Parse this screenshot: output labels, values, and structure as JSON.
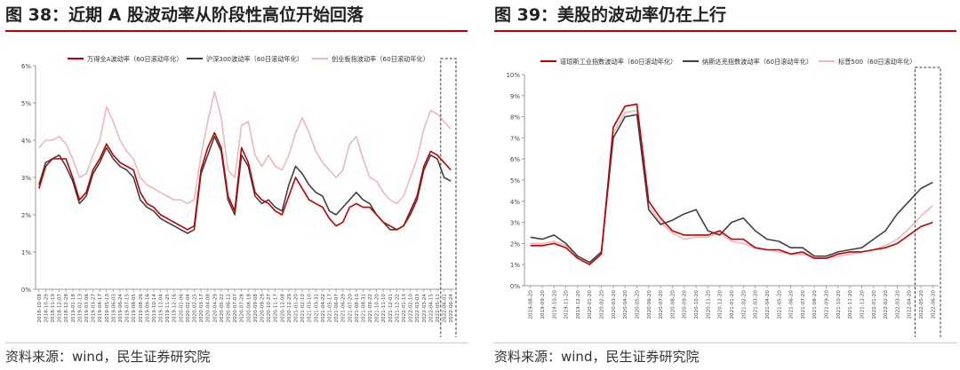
{
  "source_label": "资料来源：wind，民生证券研究院",
  "chart_data": [
    {
      "id": "fig38",
      "type": "line",
      "title": "图 38：近期 A 股波动率从阶段性高位开始回落",
      "xlabel": "",
      "ylabel": "",
      "ylim": [
        0,
        6
      ],
      "y_ticks": [
        "0%",
        "1%",
        "2%",
        "3%",
        "4%",
        "5%",
        "6%"
      ],
      "x_ticks": [
        "2018-10-08",
        "2018-10-29",
        "2018-11-19",
        "2018-12-07",
        "2018-12-28",
        "2019-01-18",
        "2019-02-13",
        "2019-03-06",
        "2019-03-27",
        "2019-04-17",
        "2019-05-13",
        "2019-06-03",
        "2019-06-24",
        "2019-07-15",
        "2019-08-05",
        "2019-08-26",
        "2019-09-16",
        "2019-10-14",
        "2019-11-04",
        "2019-11-25",
        "2019-12-16",
        "2020-01-06",
        "2020-02-04",
        "2020-02-25",
        "2020-03-17",
        "2020-04-08",
        "2020-04-29",
        "2020-05-22",
        "2020-06-12",
        "2020-07-07",
        "2020-07-28",
        "2020-08-18",
        "2020-09-08",
        "2020-09-29",
        "2020-10-27",
        "2020-11-17",
        "2020-12-08",
        "2020-12-29",
        "2021-01-20",
        "2021-02-10",
        "2021-03-10",
        "2021-03-31",
        "2021-04-22",
        "2021-05-17",
        "2021-06-07",
        "2021-06-29",
        "2021-07-20",
        "2021-08-10",
        "2021-08-31",
        "2021-09-22",
        "2021-10-20",
        "2021-11-10",
        "2021-12-01",
        "2021-12-22",
        "2022-01-13",
        "2022-02-10",
        "2022-03-03",
        "2022-03-24",
        "2022-04-15",
        "2022-05-11",
        "2022-06-01",
        "2022-06-24"
      ],
      "legend_position": "top",
      "grid": false,
      "highlight_last": true,
      "series": [
        {
          "name": "万得全A波动率（60日滚动年化）",
          "color": "#c00000",
          "values": [
            2.7,
            3.3,
            3.5,
            3.5,
            3.5,
            3.0,
            2.4,
            2.6,
            3.2,
            3.5,
            3.9,
            3.6,
            3.4,
            3.3,
            3.2,
            2.6,
            2.3,
            2.2,
            2.0,
            1.9,
            1.8,
            1.7,
            1.6,
            1.7,
            3.2,
            3.8,
            4.2,
            3.8,
            2.5,
            2.1,
            3.8,
            3.4,
            2.6,
            2.4,
            2.3,
            2.1,
            2.0,
            2.5,
            3.0,
            2.7,
            2.4,
            2.3,
            2.2,
            1.9,
            1.7,
            1.8,
            2.2,
            2.3,
            2.2,
            2.2,
            2.0,
            1.8,
            1.7,
            1.6,
            1.7,
            2.1,
            2.5,
            3.3,
            3.7,
            3.6,
            3.4,
            3.2
          ]
        },
        {
          "name": "沪深300波动率（60日滚动年化）",
          "color": "#404040",
          "values": [
            2.8,
            3.4,
            3.5,
            3.6,
            3.3,
            2.9,
            2.3,
            2.5,
            3.1,
            3.4,
            3.8,
            3.5,
            3.3,
            3.2,
            3.0,
            2.4,
            2.2,
            2.1,
            1.9,
            1.8,
            1.7,
            1.6,
            1.5,
            1.6,
            3.1,
            3.6,
            4.1,
            3.7,
            2.4,
            2.0,
            3.6,
            3.3,
            2.5,
            2.3,
            2.4,
            2.2,
            2.1,
            2.8,
            3.3,
            3.1,
            2.8,
            2.6,
            2.5,
            2.1,
            2.0,
            2.2,
            2.4,
            2.6,
            2.4,
            2.3,
            2.0,
            1.8,
            1.6,
            1.6,
            1.7,
            2.0,
            2.4,
            3.2,
            3.6,
            3.5,
            3.0,
            2.9
          ]
        },
        {
          "name": "创业板指波动率（60日滚动年化）",
          "color": "#f0b8b8",
          "values": [
            3.8,
            4.0,
            4.0,
            4.1,
            3.9,
            3.5,
            3.0,
            3.1,
            3.6,
            4.0,
            4.9,
            4.5,
            4.0,
            3.7,
            3.5,
            3.0,
            2.8,
            2.7,
            2.6,
            2.5,
            2.4,
            2.4,
            2.3,
            2.4,
            3.6,
            4.5,
            5.3,
            4.6,
            3.2,
            3.0,
            4.4,
            4.5,
            3.6,
            3.3,
            3.6,
            3.3,
            3.2,
            3.6,
            4.2,
            4.6,
            4.2,
            3.7,
            3.4,
            3.2,
            3.0,
            3.2,
            3.9,
            4.1,
            3.5,
            3.0,
            2.9,
            2.6,
            2.4,
            2.3,
            2.5,
            3.0,
            3.5,
            4.3,
            4.8,
            4.7,
            4.5,
            4.3
          ]
        }
      ]
    },
    {
      "id": "fig39",
      "type": "line",
      "title": "图 39：美股的波动率仍在上行",
      "xlabel": "",
      "ylabel": "",
      "ylim": [
        0,
        10
      ],
      "y_ticks": [
        "0%",
        "1%",
        "2%",
        "3%",
        "4%",
        "5%",
        "6%",
        "7%",
        "8%",
        "9%",
        "10%"
      ],
      "x_ticks": [
        "2019-08-20",
        "2019-09-20",
        "2019-10-20",
        "2019-11-20",
        "2019-12-20",
        "2020-01-20",
        "2020-02-20",
        "2020-03-20",
        "2020-04-20",
        "2020-05-20",
        "2020-06-20",
        "2020-07-20",
        "2020-08-20",
        "2020-09-20",
        "2020-10-20",
        "2020-11-20",
        "2020-12-20",
        "2021-01-20",
        "2021-02-20",
        "2021-03-20",
        "2021-04-20",
        "2021-05-20",
        "2021-06-20",
        "2021-07-20",
        "2021-08-20",
        "2021-09-20",
        "2021-10-20",
        "2021-11-20",
        "2021-12-20",
        "2022-01-20",
        "2022-02-20",
        "2022-03-20",
        "2022-04-20",
        "2022-05-20",
        "2022-06-20"
      ],
      "legend_position": "top",
      "grid": false,
      "highlight_last": true,
      "series": [
        {
          "name": "道琼斯工业指数波动率（60日滚动年化）",
          "color": "#c00000",
          "values": [
            1.9,
            1.9,
            2.0,
            1.8,
            1.3,
            1.0,
            1.5,
            7.5,
            8.5,
            8.6,
            4.0,
            3.2,
            2.6,
            2.4,
            2.4,
            2.4,
            2.6,
            2.2,
            2.2,
            1.8,
            1.7,
            1.7,
            1.5,
            1.6,
            1.3,
            1.3,
            1.5,
            1.6,
            1.6,
            1.7,
            1.8,
            2.0,
            2.4,
            2.8,
            3.0
          ]
        },
        {
          "name": "纳斯达克指数波动率（60日滚动年化）",
          "color": "#404040",
          "values": [
            2.3,
            2.2,
            2.4,
            2.0,
            1.4,
            1.1,
            1.6,
            7.0,
            8.0,
            8.1,
            3.6,
            2.9,
            3.1,
            3.4,
            3.6,
            2.6,
            2.4,
            3.0,
            3.2,
            2.6,
            2.2,
            2.1,
            1.8,
            1.8,
            1.4,
            1.4,
            1.6,
            1.7,
            1.8,
            2.2,
            2.6,
            3.4,
            4.0,
            4.6,
            4.9
          ]
        },
        {
          "name": "标普500（60日滚动年化）",
          "color": "#f0b8b8",
          "values": [
            2.0,
            2.0,
            2.1,
            1.9,
            1.4,
            1.1,
            1.5,
            7.2,
            8.2,
            8.3,
            3.8,
            3.0,
            2.5,
            2.2,
            2.3,
            2.3,
            2.5,
            2.1,
            2.0,
            1.8,
            1.7,
            1.6,
            1.5,
            1.5,
            1.3,
            1.3,
            1.4,
            1.5,
            1.6,
            1.7,
            1.9,
            2.2,
            2.7,
            3.3,
            3.8
          ]
        }
      ]
    }
  ]
}
